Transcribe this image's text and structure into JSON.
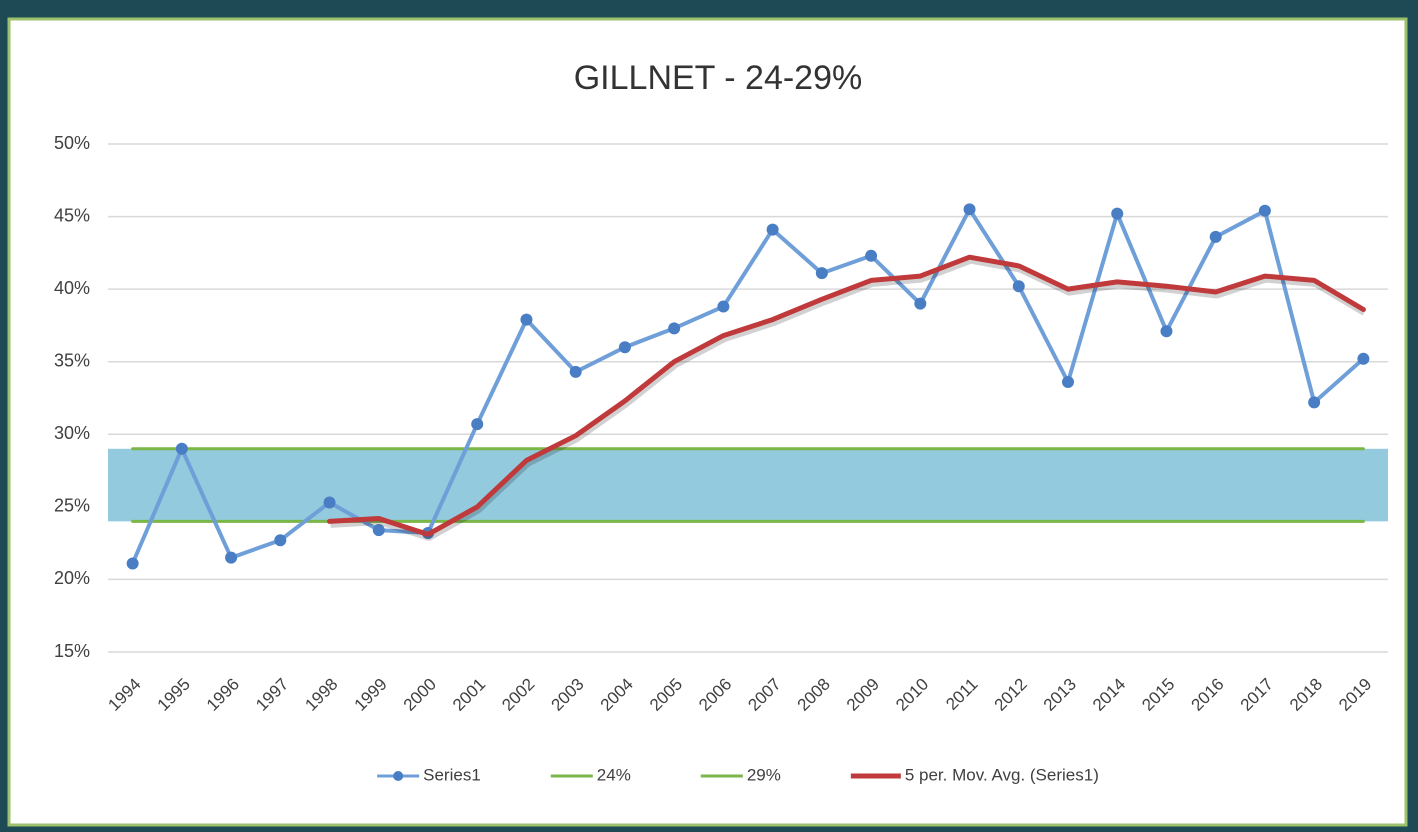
{
  "chart_data": {
    "type": "line",
    "title": "GILLNET - 24-29%",
    "categories": [
      "1994",
      "1995",
      "1996",
      "1997",
      "1998",
      "1999",
      "2000",
      "2001",
      "2002",
      "2003",
      "2004",
      "2005",
      "2006",
      "2007",
      "2008",
      "2009",
      "2010",
      "2011",
      "2012",
      "2013",
      "2014",
      "2015",
      "2016",
      "2017",
      "2018",
      "2019"
    ],
    "series": [
      {
        "name": "Series1",
        "color": "#6f9fd8",
        "marker_color": "#4a7ec4",
        "values": [
          21.1,
          29.0,
          21.5,
          22.7,
          25.3,
          23.4,
          23.2,
          30.7,
          37.9,
          34.3,
          36.0,
          37.3,
          38.8,
          44.1,
          41.1,
          42.3,
          39.0,
          45.5,
          40.2,
          33.6,
          45.2,
          37.1,
          43.6,
          45.4,
          32.2,
          35.2
        ]
      },
      {
        "name": "24%",
        "color": "#7ab648",
        "values": [
          24,
          24,
          24,
          24,
          24,
          24,
          24,
          24,
          24,
          24,
          24,
          24,
          24,
          24,
          24,
          24,
          24,
          24,
          24,
          24,
          24,
          24,
          24,
          24,
          24,
          24
        ]
      },
      {
        "name": "29%",
        "color": "#7ab648",
        "values": [
          29,
          29,
          29,
          29,
          29,
          29,
          29,
          29,
          29,
          29,
          29,
          29,
          29,
          29,
          29,
          29,
          29,
          29,
          29,
          29,
          29,
          29,
          29,
          29,
          29,
          29
        ]
      },
      {
        "name": "5 per. Mov. Avg. (Series1)",
        "color": "#c0393b",
        "values": [
          null,
          null,
          null,
          null,
          24.0,
          24.2,
          23.1,
          25.0,
          28.2,
          29.9,
          32.3,
          35.0,
          36.8,
          37.9,
          39.3,
          40.6,
          40.9,
          42.2,
          41.6,
          40.0,
          40.5,
          40.2,
          39.8,
          40.9,
          40.6,
          38.6
        ]
      }
    ],
    "band_color": "#93cadd",
    "ylim": [
      15,
      50
    ],
    "yticks": [
      {
        "value": 15,
        "label": "15%"
      },
      {
        "value": 20,
        "label": "20%"
      },
      {
        "value": 25,
        "label": "25%"
      },
      {
        "value": 30,
        "label": "30%"
      },
      {
        "value": 35,
        "label": "35%"
      },
      {
        "value": 40,
        "label": "40%"
      },
      {
        "value": 45,
        "label": "45%"
      },
      {
        "value": 50,
        "label": "50%"
      }
    ],
    "grid": true,
    "legend": "bottom"
  }
}
